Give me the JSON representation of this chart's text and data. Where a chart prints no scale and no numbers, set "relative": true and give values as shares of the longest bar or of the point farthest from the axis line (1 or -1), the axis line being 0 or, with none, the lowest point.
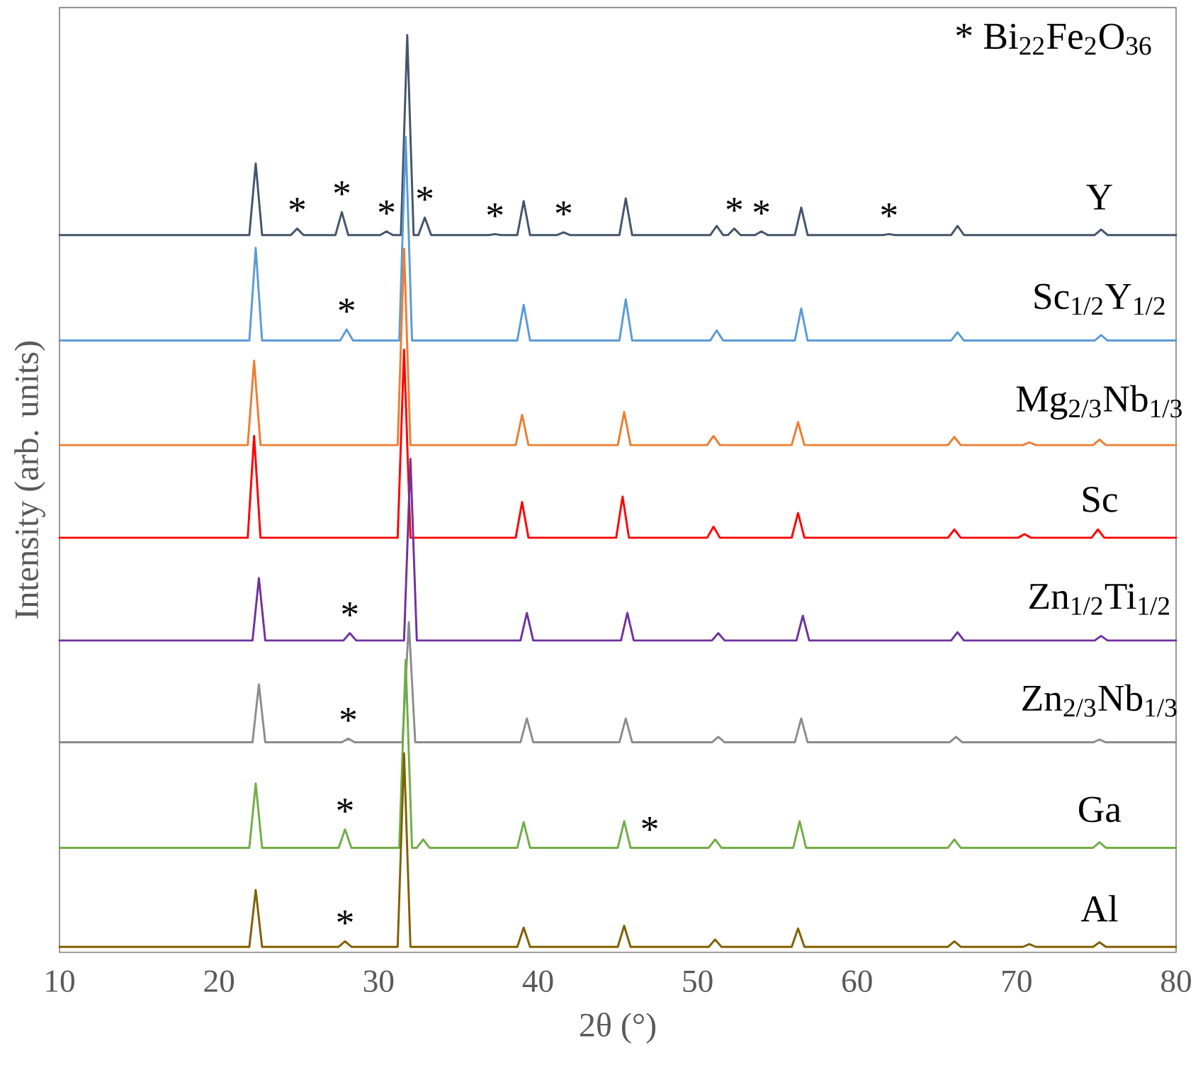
{
  "chart_data": {
    "type": "line",
    "relative": true,
    "xlabel": "2θ (°)",
    "ylabel": "Intensity (arb. units)",
    "xlim": [
      10,
      80
    ],
    "xticks": [
      10,
      20,
      30,
      40,
      50,
      60,
      70,
      80
    ],
    "series": [
      {
        "name": "Y",
        "color": "#44546a",
        "x": [
          10,
          21.9,
          22.3,
          22.7,
          24.5,
          24.9,
          25.3,
          27.3,
          27.7,
          28.1,
          30.1,
          30.5,
          30.9,
          31.4,
          31.8,
          32.2,
          32.5,
          32.9,
          33.3,
          36.9,
          37.3,
          37.7,
          38.7,
          39.1,
          39.5,
          41.2,
          41.6,
          42.0,
          45.1,
          45.5,
          45.9,
          50.8,
          51.2,
          51.6,
          51.9,
          52.3,
          52.7,
          53.6,
          54.0,
          54.4,
          56.1,
          56.5,
          56.9,
          61.6,
          62.0,
          62.4,
          65.9,
          66.3,
          66.7,
          74.9,
          75.3,
          75.7,
          80
        ],
        "values": [
          0.782,
          0.782,
          0.86,
          0.782,
          0.782,
          0.789,
          0.782,
          0.782,
          0.807,
          0.782,
          0.782,
          0.786,
          0.782,
          0.782,
          1.0,
          0.782,
          0.782,
          0.801,
          0.782,
          0.782,
          0.783,
          0.782,
          0.782,
          0.819,
          0.782,
          0.782,
          0.785,
          0.782,
          0.782,
          0.822,
          0.782,
          0.782,
          0.792,
          0.782,
          0.782,
          0.789,
          0.782,
          0.782,
          0.786,
          0.782,
          0.782,
          0.812,
          0.782,
          0.782,
          0.783,
          0.782,
          0.782,
          0.792,
          0.782,
          0.782,
          0.788,
          0.782,
          0.782
        ]
      },
      {
        "name": "Sc$_{1/2}$Y$_{1/2}$",
        "color": "#5b9bd5",
        "x": [
          10,
          21.9,
          22.3,
          22.7,
          27.6,
          28.0,
          28.4,
          31.3,
          31.7,
          32.1,
          38.7,
          39.1,
          39.5,
          45.1,
          45.5,
          45.9,
          50.8,
          51.2,
          51.6,
          56.1,
          56.5,
          56.9,
          65.9,
          66.3,
          66.7,
          74.9,
          75.3,
          75.7,
          80
        ],
        "values": [
          0.667,
          0.667,
          0.768,
          0.667,
          0.667,
          0.679,
          0.667,
          0.667,
          0.889,
          0.667,
          0.667,
          0.706,
          0.667,
          0.667,
          0.712,
          0.667,
          0.667,
          0.678,
          0.667,
          0.667,
          0.702,
          0.667,
          0.667,
          0.676,
          0.667,
          0.667,
          0.673,
          0.667,
          0.667
        ]
      },
      {
        "name": "Mg$_{2/3}$Nb$_{1/3}$",
        "color": "#ed7d31",
        "x": [
          10,
          21.8,
          22.2,
          22.6,
          31.2,
          31.6,
          32.0,
          38.6,
          39.0,
          39.4,
          45.0,
          45.4,
          45.8,
          50.6,
          51.0,
          51.4,
          55.9,
          56.3,
          56.7,
          65.7,
          66.1,
          66.5,
          70.4,
          70.8,
          71.2,
          74.8,
          75.2,
          75.6,
          80
        ],
        "values": [
          0.553,
          0.553,
          0.645,
          0.553,
          0.553,
          0.767,
          0.553,
          0.553,
          0.586,
          0.553,
          0.553,
          0.589,
          0.553,
          0.553,
          0.563,
          0.553,
          0.553,
          0.578,
          0.553,
          0.553,
          0.562,
          0.553,
          0.553,
          0.556,
          0.553,
          0.553,
          0.559,
          0.553,
          0.553
        ]
      },
      {
        "name": "Sc",
        "color": "#ff0000",
        "x": [
          10,
          21.8,
          22.2,
          22.6,
          31.2,
          31.6,
          32.0,
          38.6,
          39.0,
          39.4,
          44.9,
          45.3,
          45.7,
          50.6,
          51.0,
          51.4,
          55.9,
          56.3,
          56.7,
          65.7,
          66.1,
          66.5,
          70.1,
          70.5,
          70.9,
          74.7,
          75.1,
          75.5,
          80
        ],
        "values": [
          0.452,
          0.452,
          0.563,
          0.452,
          0.452,
          0.657,
          0.452,
          0.452,
          0.491,
          0.452,
          0.452,
          0.497,
          0.452,
          0.452,
          0.464,
          0.452,
          0.452,
          0.479,
          0.452,
          0.452,
          0.461,
          0.452,
          0.452,
          0.456,
          0.452,
          0.452,
          0.461,
          0.452,
          0.452
        ]
      },
      {
        "name": "Zn$_{1/2}$Ti$_{1/2}$",
        "color": "#7030a0",
        "x": [
          10,
          22.1,
          22.5,
          22.9,
          27.8,
          28.2,
          28.6,
          31.6,
          32.0,
          32.4,
          38.9,
          39.3,
          39.7,
          45.2,
          45.6,
          46.0,
          50.9,
          51.3,
          51.7,
          56.2,
          56.6,
          57.0,
          65.9,
          66.3,
          66.7,
          74.9,
          75.3,
          75.7,
          80
        ],
        "values": [
          0.34,
          0.34,
          0.408,
          0.34,
          0.34,
          0.348,
          0.34,
          0.34,
          0.538,
          0.34,
          0.34,
          0.37,
          0.34,
          0.34,
          0.37,
          0.34,
          0.34,
          0.348,
          0.34,
          0.34,
          0.367,
          0.34,
          0.34,
          0.349,
          0.34,
          0.34,
          0.345,
          0.34,
          0.34
        ]
      },
      {
        "name": "Zn$_{2/3}$Nb$_{1/3}$",
        "color": "#8c8c8c",
        "x": [
          10,
          22.1,
          22.5,
          22.9,
          27.7,
          28.1,
          28.5,
          31.5,
          31.9,
          32.3,
          38.9,
          39.3,
          39.7,
          45.1,
          45.5,
          45.9,
          50.9,
          51.3,
          51.7,
          56.1,
          56.5,
          56.9,
          65.8,
          66.2,
          66.6,
          74.8,
          75.2,
          75.6,
          80
        ],
        "values": [
          0.229,
          0.229,
          0.292,
          0.229,
          0.229,
          0.233,
          0.229,
          0.229,
          0.36,
          0.229,
          0.229,
          0.255,
          0.229,
          0.229,
          0.255,
          0.229,
          0.229,
          0.235,
          0.229,
          0.229,
          0.255,
          0.229,
          0.229,
          0.235,
          0.229,
          0.229,
          0.232,
          0.229,
          0.229
        ]
      },
      {
        "name": "Ga",
        "color": "#70ad47",
        "x": [
          10,
          21.9,
          22.3,
          22.7,
          27.5,
          27.9,
          28.3,
          31.3,
          31.7,
          32.1,
          32.4,
          32.8,
          33.2,
          38.7,
          39.1,
          39.5,
          45.0,
          45.4,
          45.8,
          50.7,
          51.1,
          51.5,
          56.0,
          56.4,
          56.8,
          65.7,
          66.1,
          66.5,
          74.8,
          75.2,
          75.6,
          80
        ],
        "values": [
          0.114,
          0.114,
          0.184,
          0.114,
          0.114,
          0.134,
          0.114,
          0.114,
          0.319,
          0.114,
          0.114,
          0.123,
          0.114,
          0.114,
          0.142,
          0.114,
          0.114,
          0.143,
          0.114,
          0.114,
          0.123,
          0.114,
          0.114,
          0.143,
          0.114,
          0.114,
          0.123,
          0.114,
          0.114,
          0.12,
          0.114,
          0.114
        ]
      },
      {
        "name": "Al",
        "color": "#806000",
        "x": [
          10,
          21.9,
          22.3,
          22.7,
          27.5,
          27.9,
          28.3,
          31.2,
          31.6,
          32.0,
          38.7,
          39.1,
          39.5,
          45.0,
          45.4,
          45.8,
          50.7,
          51.1,
          51.5,
          55.9,
          56.3,
          56.7,
          65.7,
          66.1,
          66.5,
          70.4,
          70.8,
          71.2,
          74.8,
          75.2,
          75.6,
          80
        ],
        "values": [
          0.006,
          0.006,
          0.068,
          0.006,
          0.006,
          0.012,
          0.006,
          0.006,
          0.217,
          0.006,
          0.006,
          0.027,
          0.006,
          0.006,
          0.029,
          0.006,
          0.006,
          0.014,
          0.006,
          0.006,
          0.026,
          0.006,
          0.006,
          0.012,
          0.006,
          0.006,
          0.009,
          0.006,
          0.006,
          0.011,
          0.006,
          0.006
        ]
      }
    ],
    "annotations": [
      "* Bi$_{22}$Fe$_{2}$O$_{36}$",
      {
        "text": "*",
        "x": 24.9,
        "y": 0.789
      },
      {
        "text": "*",
        "x": 27.7,
        "y": 0.807
      },
      {
        "text": "*",
        "x": 30.5,
        "y": 0.786
      },
      {
        "text": "*",
        "x": 32.9,
        "y": 0.801
      },
      {
        "text": "*",
        "x": 37.3,
        "y": 0.783
      },
      {
        "text": "*",
        "x": 41.6,
        "y": 0.785
      },
      {
        "text": "*",
        "x": 52.3,
        "y": 0.789
      },
      {
        "text": "*",
        "x": 54.0,
        "y": 0.786
      },
      {
        "text": "*",
        "x": 62.0,
        "y": 0.783
      },
      {
        "text": "*",
        "x": 28.0,
        "y": 0.679
      },
      {
        "text": "*",
        "x": 28.2,
        "y": 0.348
      },
      {
        "text": "*",
        "x": 28.1,
        "y": 0.233
      },
      {
        "text": "*",
        "x": 27.9,
        "y": 0.134
      },
      {
        "text": "*",
        "x": 47.0,
        "y": 0.114
      },
      {
        "text": "*",
        "x": 27.9,
        "y": 0.012
      }
    ]
  }
}
